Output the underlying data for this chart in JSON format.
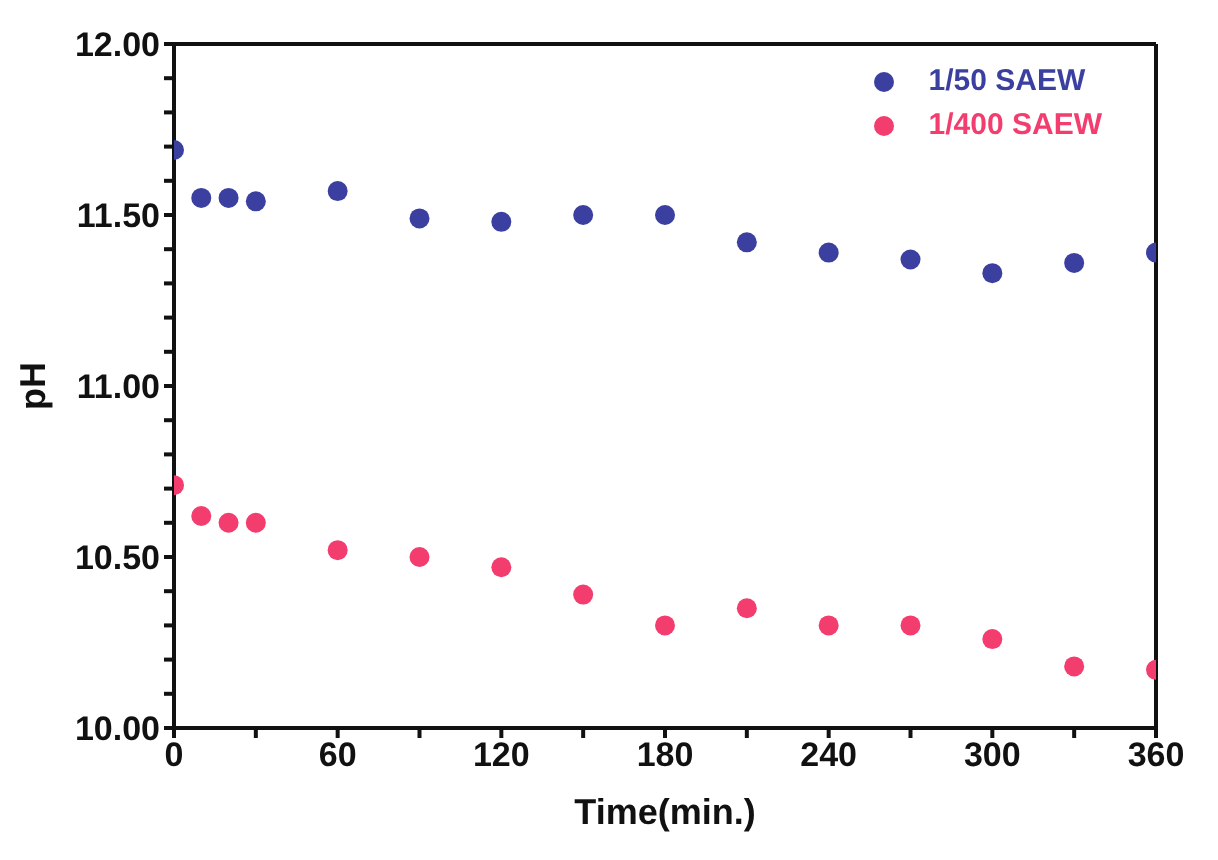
{
  "chart_data": {
    "type": "scatter",
    "xlabel": "Time(min.)",
    "ylabel": "pH",
    "x": [
      0,
      10,
      20,
      30,
      60,
      90,
      120,
      150,
      180,
      210,
      240,
      270,
      300,
      330,
      360
    ],
    "series": [
      {
        "name": "1/50 SAEW",
        "color": "#3a3fa0",
        "values": [
          11.69,
          11.55,
          11.55,
          11.54,
          11.57,
          11.49,
          11.48,
          11.5,
          11.5,
          11.42,
          11.39,
          11.37,
          11.33,
          11.36,
          11.39
        ]
      },
      {
        "name": "1/400 SAEW",
        "color": "#f23d6e",
        "values": [
          10.71,
          10.62,
          10.6,
          10.6,
          10.52,
          10.5,
          10.47,
          10.39,
          10.3,
          10.35,
          10.3,
          10.3,
          10.26,
          10.18,
          10.17
        ]
      }
    ],
    "xlim": [
      0,
      360
    ],
    "xticks": [
      0,
      {
        "value": 30,
        "label": null
      },
      60,
      {
        "value": 90,
        "label": null
      },
      120,
      {
        "value": 150,
        "label": null
      },
      180,
      {
        "value": 210,
        "label": null
      },
      240,
      {
        "value": 270,
        "label": null
      },
      300,
      {
        "value": 330,
        "label": null
      },
      360
    ],
    "ylim": [
      10,
      12
    ],
    "yticks": [
      {
        "value": 10,
        "label": "10.00"
      },
      {
        "value": 10.1,
        "label": null
      },
      {
        "value": 10.2,
        "label": null
      },
      {
        "value": 10.3,
        "label": null
      },
      {
        "value": 10.4,
        "label": null
      },
      {
        "value": 10.5,
        "label": "10.50"
      },
      {
        "value": 10.6,
        "label": null
      },
      {
        "value": 10.7,
        "label": null
      },
      {
        "value": 10.8,
        "label": null
      },
      {
        "value": 10.9,
        "label": null
      },
      {
        "value": 11,
        "label": "11.00"
      },
      {
        "value": 11.1,
        "label": null
      },
      {
        "value": 11.2,
        "label": null
      },
      {
        "value": 11.3,
        "label": null
      },
      {
        "value": 11.4,
        "label": null
      },
      {
        "value": 11.5,
        "label": "11.50"
      },
      {
        "value": 11.6,
        "label": null
      },
      {
        "value": 11.7,
        "label": null
      },
      {
        "value": 11.8,
        "label": null
      },
      {
        "value": 11.9,
        "label": null
      },
      {
        "value": 12,
        "label": "12.00"
      }
    ],
    "legend": "top right",
    "marker": "circle"
  }
}
